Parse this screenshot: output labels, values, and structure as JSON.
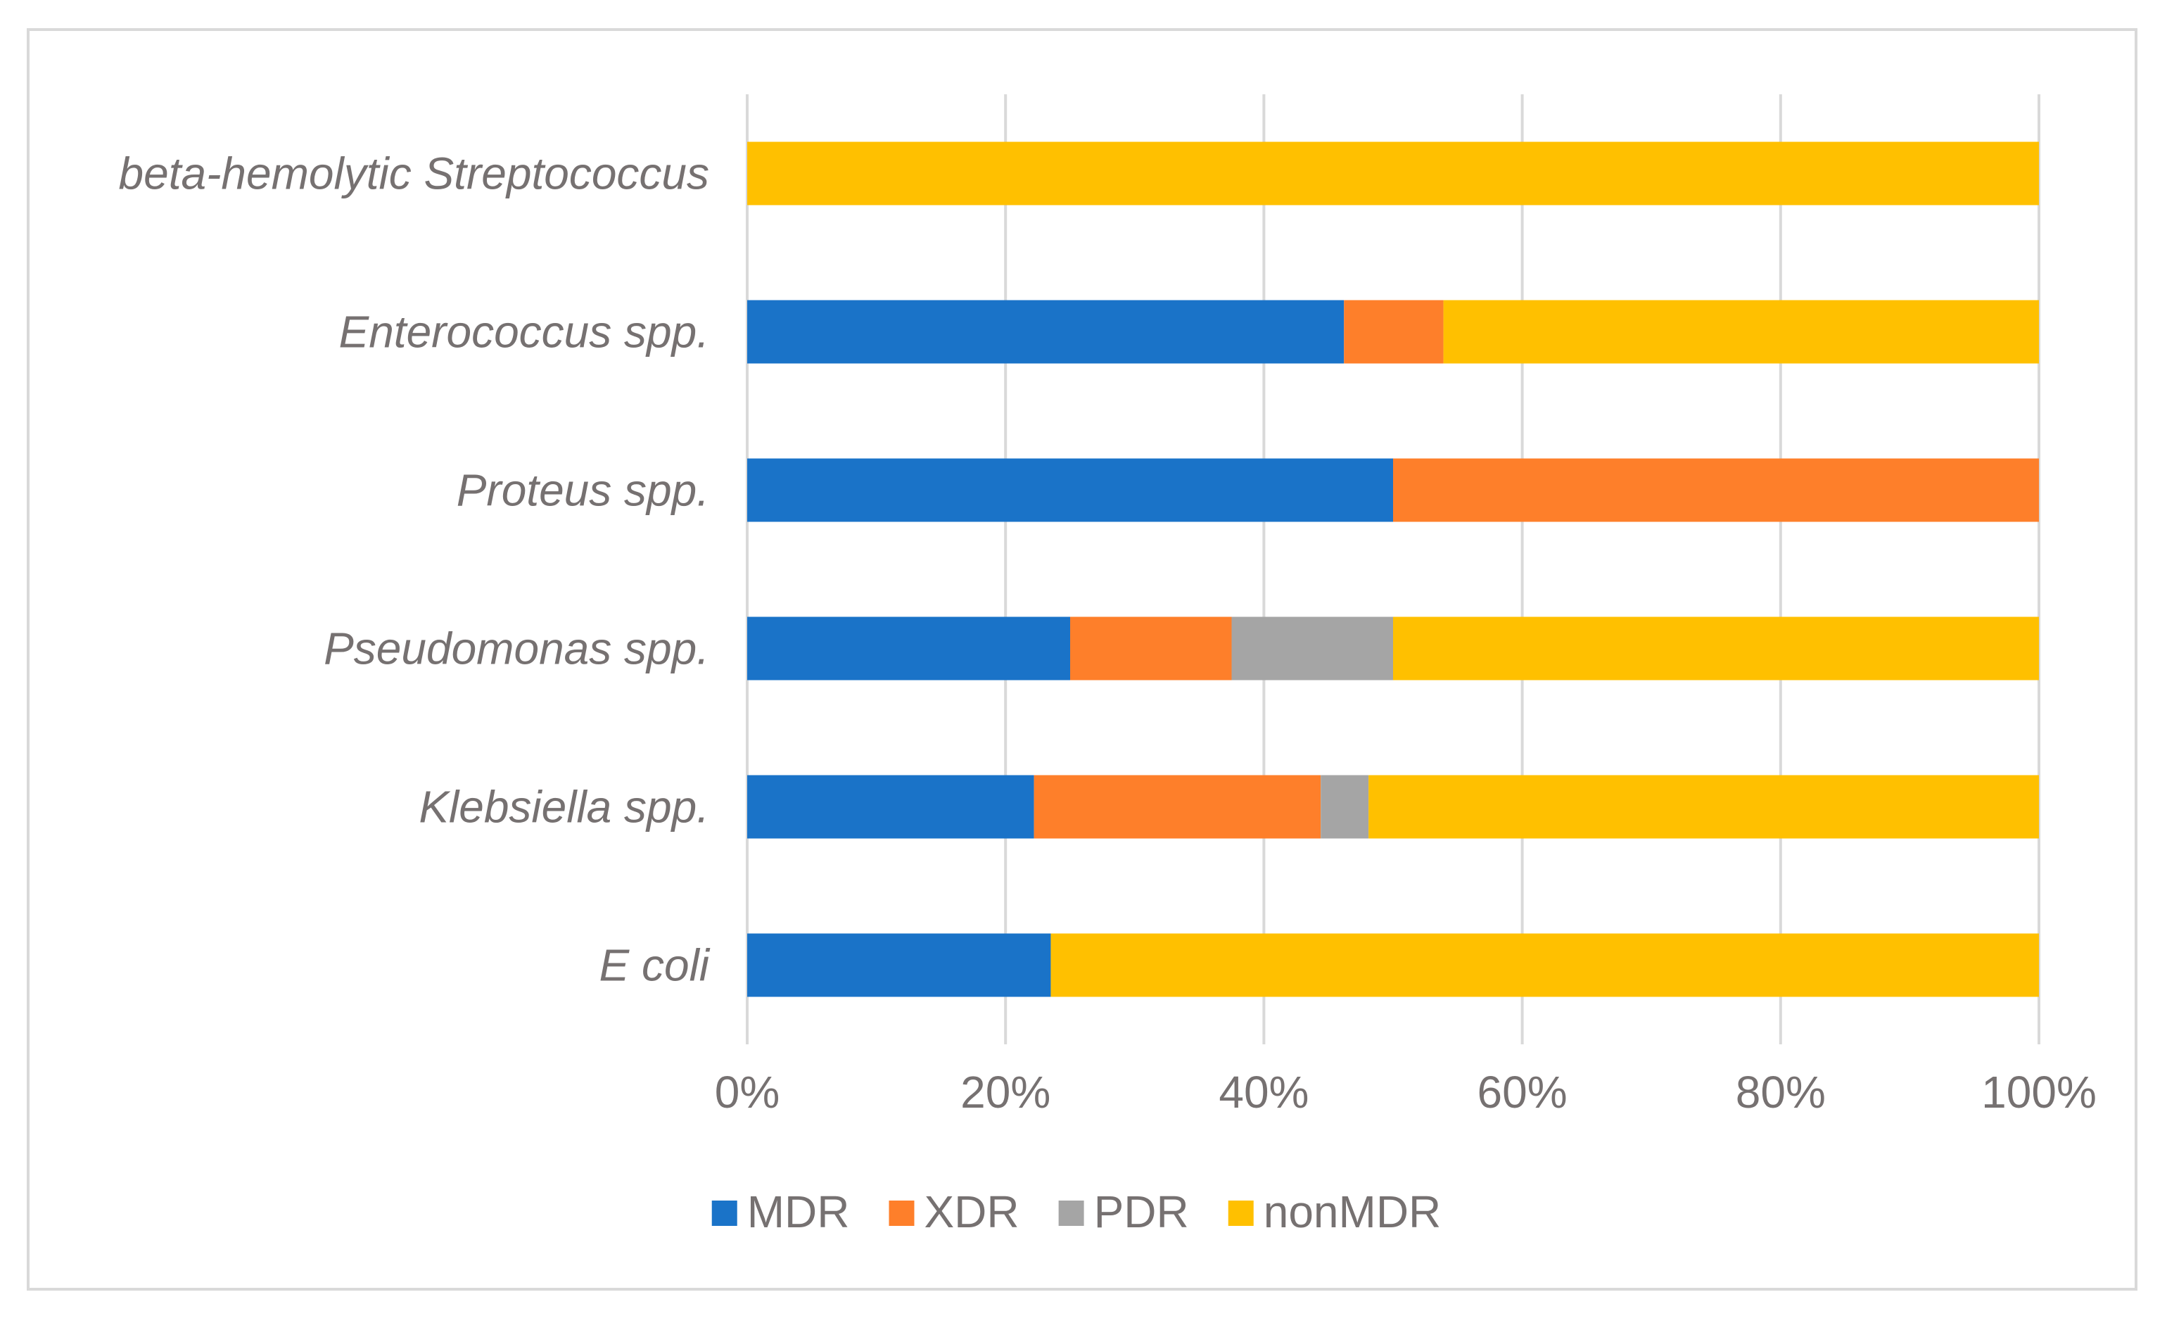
{
  "chart_data": {
    "type": "bar",
    "orientation": "horizontal",
    "stacked": "percent",
    "title": "",
    "xlabel": "",
    "ylabel": "",
    "xlim": [
      0,
      100
    ],
    "grid": true,
    "legend_position": "bottom",
    "categories": [
      "E coli",
      "Klebsiella spp.",
      "Pseudomonas spp.",
      "Proteus spp.",
      "Enterococcus spp.",
      "beta-hemolytic Streptococcus"
    ],
    "x_ticks": [
      "0%",
      "20%",
      "40%",
      "60%",
      "80%",
      "100%"
    ],
    "series": [
      {
        "name": "MDR",
        "color": "#1a73c8",
        "values": [
          23.5,
          22.2,
          25.0,
          50.0,
          46.2,
          0
        ]
      },
      {
        "name": "XDR",
        "color": "#fe7f2a",
        "values": [
          0,
          22.2,
          12.5,
          50.0,
          7.7,
          0
        ]
      },
      {
        "name": "PDR",
        "color": "#a5a5a5",
        "values": [
          0,
          3.7,
          12.5,
          0,
          0,
          0
        ]
      },
      {
        "name": "nonMDR",
        "color": "#ffc000",
        "values": [
          76.5,
          51.9,
          50.0,
          0,
          46.1,
          100
        ]
      }
    ]
  }
}
